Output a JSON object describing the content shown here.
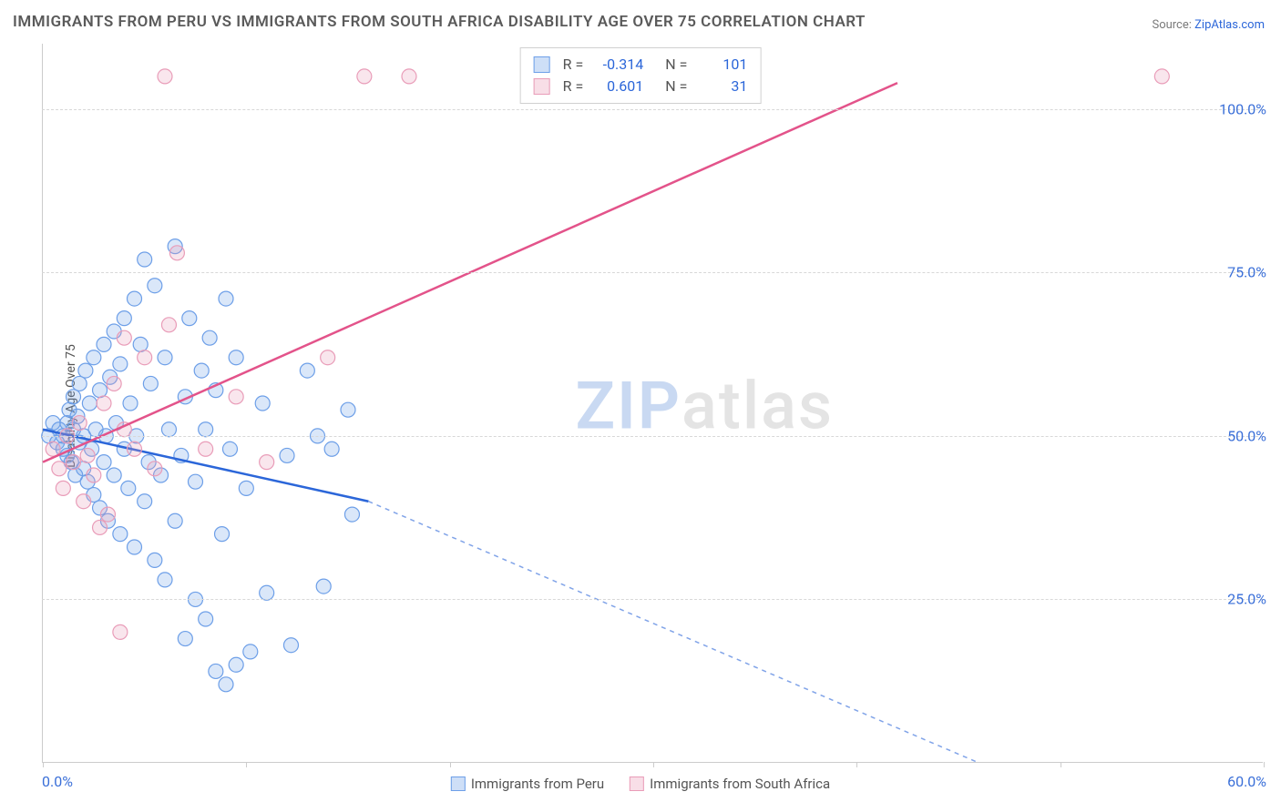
{
  "title": "IMMIGRANTS FROM PERU VS IMMIGRANTS FROM SOUTH AFRICA DISABILITY AGE OVER 75 CORRELATION CHART",
  "source_prefix": "Source: ",
  "source_link": "ZipAtlas.com",
  "ylabel": "Disability Age Over 75",
  "watermark_zip": "ZIP",
  "watermark_atlas": "atlas",
  "chart": {
    "type": "scatter",
    "xlim": [
      0,
      60
    ],
    "ylim": [
      0,
      110
    ],
    "y_gridlines": [
      25,
      50,
      75,
      100
    ],
    "y_tick_labels": [
      "25.0%",
      "50.0%",
      "75.0%",
      "100.0%"
    ],
    "x_ticks": [
      0,
      10,
      20,
      30,
      40,
      50,
      60
    ],
    "x_origin_label": "0.0%",
    "x_end_label": "60.0%",
    "grid_color": "#d8d8d8",
    "axis_color": "#cccccc",
    "background": "#ffffff",
    "marker_radius": 8,
    "marker_stroke_width": 1.2,
    "marker_fill_opacity": 0.25,
    "line_width": 2.5,
    "dash_pattern": "5,5",
    "series": [
      {
        "name": "Immigrants from Peru",
        "color": "#6d9fe8",
        "line_color": "#2b66d9",
        "R": "-0.314",
        "N": "101",
        "trend": {
          "x1": 0,
          "y1": 51,
          "x2": 16,
          "y2": 40,
          "solid_frac": 1.0
        },
        "trend_ext": {
          "x1": 16,
          "y1": 40,
          "x2": 46,
          "y2": 0
        },
        "points": [
          [
            0.3,
            50
          ],
          [
            0.5,
            52
          ],
          [
            0.7,
            49
          ],
          [
            0.8,
            51
          ],
          [
            1.0,
            50
          ],
          [
            1.0,
            48
          ],
          [
            1.2,
            52
          ],
          [
            1.2,
            47
          ],
          [
            1.3,
            54
          ],
          [
            1.4,
            46
          ],
          [
            1.5,
            51
          ],
          [
            1.5,
            56
          ],
          [
            1.6,
            44
          ],
          [
            1.7,
            53
          ],
          [
            1.8,
            49
          ],
          [
            1.8,
            58
          ],
          [
            2.0,
            50
          ],
          [
            2.0,
            45
          ],
          [
            2.1,
            60
          ],
          [
            2.2,
            43
          ],
          [
            2.3,
            55
          ],
          [
            2.4,
            48
          ],
          [
            2.5,
            62
          ],
          [
            2.5,
            41
          ],
          [
            2.6,
            51
          ],
          [
            2.8,
            57
          ],
          [
            2.8,
            39
          ],
          [
            3.0,
            64
          ],
          [
            3.0,
            46
          ],
          [
            3.1,
            50
          ],
          [
            3.2,
            37
          ],
          [
            3.3,
            59
          ],
          [
            3.5,
            44
          ],
          [
            3.5,
            66
          ],
          [
            3.6,
            52
          ],
          [
            3.8,
            35
          ],
          [
            3.8,
            61
          ],
          [
            4.0,
            48
          ],
          [
            4.0,
            68
          ],
          [
            4.2,
            42
          ],
          [
            4.3,
            55
          ],
          [
            4.5,
            33
          ],
          [
            4.5,
            71
          ],
          [
            4.6,
            50
          ],
          [
            4.8,
            64
          ],
          [
            5.0,
            40
          ],
          [
            5.0,
            77
          ],
          [
            5.2,
            46
          ],
          [
            5.3,
            58
          ],
          [
            5.5,
            31
          ],
          [
            5.5,
            73
          ],
          [
            5.8,
            44
          ],
          [
            6.0,
            62
          ],
          [
            6.0,
            28
          ],
          [
            6.2,
            51
          ],
          [
            6.5,
            79
          ],
          [
            6.5,
            37
          ],
          [
            6.8,
            47
          ],
          [
            7.0,
            19
          ],
          [
            7.0,
            56
          ],
          [
            7.2,
            68
          ],
          [
            7.5,
            25
          ],
          [
            7.5,
            43
          ],
          [
            7.8,
            60
          ],
          [
            8.0,
            22
          ],
          [
            8.0,
            51
          ],
          [
            8.2,
            65
          ],
          [
            8.5,
            14
          ],
          [
            8.5,
            57
          ],
          [
            8.8,
            35
          ],
          [
            9.0,
            71
          ],
          [
            9.0,
            12
          ],
          [
            9.2,
            48
          ],
          [
            9.5,
            15
          ],
          [
            9.5,
            62
          ],
          [
            10.0,
            42
          ],
          [
            10.2,
            17
          ],
          [
            10.8,
            55
          ],
          [
            11.0,
            26
          ],
          [
            12.0,
            47
          ],
          [
            12.2,
            18
          ],
          [
            13.0,
            60
          ],
          [
            13.5,
            50
          ],
          [
            13.8,
            27
          ],
          [
            14.2,
            48
          ],
          [
            15.0,
            54
          ],
          [
            15.2,
            38
          ]
        ]
      },
      {
        "name": "Immigrants from South Africa",
        "color": "#e99cb8",
        "line_color": "#e3538a",
        "R": "0.601",
        "N": "31",
        "trend": {
          "x1": 0,
          "y1": 46,
          "x2": 42,
          "y2": 104,
          "solid_frac": 1.0
        },
        "points": [
          [
            0.5,
            48
          ],
          [
            0.8,
            45
          ],
          [
            1.0,
            42
          ],
          [
            1.2,
            50
          ],
          [
            1.5,
            46
          ],
          [
            1.8,
            52
          ],
          [
            2.0,
            40
          ],
          [
            2.2,
            47
          ],
          [
            2.5,
            44
          ],
          [
            2.8,
            36
          ],
          [
            3.0,
            55
          ],
          [
            3.2,
            38
          ],
          [
            3.5,
            58
          ],
          [
            3.8,
            20
          ],
          [
            4.0,
            51
          ],
          [
            4.0,
            65
          ],
          [
            4.5,
            48
          ],
          [
            5.0,
            62
          ],
          [
            5.5,
            45
          ],
          [
            6.0,
            105
          ],
          [
            6.2,
            67
          ],
          [
            6.6,
            78
          ],
          [
            8.0,
            48
          ],
          [
            9.5,
            56
          ],
          [
            11.0,
            46
          ],
          [
            14.0,
            62
          ],
          [
            15.8,
            105
          ],
          [
            18.0,
            105
          ],
          [
            55.0,
            105
          ]
        ]
      }
    ]
  },
  "legend": {
    "series1_label": "Immigrants from Peru",
    "series2_label": "Immigrants from South Africa"
  },
  "stats_labels": {
    "R": "R =",
    "N": "N ="
  }
}
